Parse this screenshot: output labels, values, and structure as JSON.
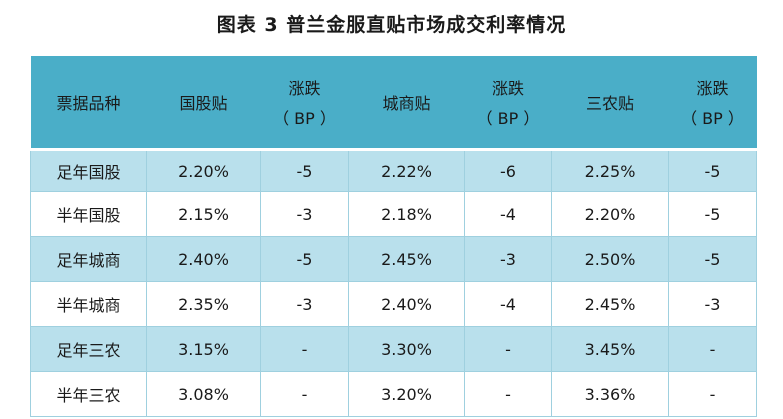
{
  "title": "图表 3  普兰金服直贴市场成交利率情况",
  "columns": [
    {
      "line1": "票据品种",
      "line2": ""
    },
    {
      "line1": "国股贴",
      "line2": ""
    },
    {
      "line1": "涨跌",
      "line2": "（ BP ）"
    },
    {
      "line1": "城商贴",
      "line2": ""
    },
    {
      "line1": "涨跌",
      "line2": "（ BP ）"
    },
    {
      "line1": "三农贴",
      "line2": ""
    },
    {
      "line1": "涨跌",
      "line2": "（ BP ）"
    }
  ],
  "rows": [
    [
      "足年国股",
      "2.20%",
      "-5",
      "2.22%",
      "-6",
      "2.25%",
      "-5"
    ],
    [
      "半年国股",
      "2.15%",
      "-3",
      "2.18%",
      "-4",
      "2.20%",
      "-5"
    ],
    [
      "足年城商",
      "2.40%",
      "-5",
      "2.45%",
      "-3",
      "2.50%",
      "-5"
    ],
    [
      "半年城商",
      "2.35%",
      "-3",
      "2.40%",
      "-4",
      "2.45%",
      "-3"
    ],
    [
      "足年三农",
      "3.15%",
      "-",
      "3.30%",
      "-",
      "3.45%",
      "-"
    ],
    [
      "半年三农",
      "3.08%",
      "-",
      "3.20%",
      "-",
      "3.36%",
      "-"
    ]
  ]
}
